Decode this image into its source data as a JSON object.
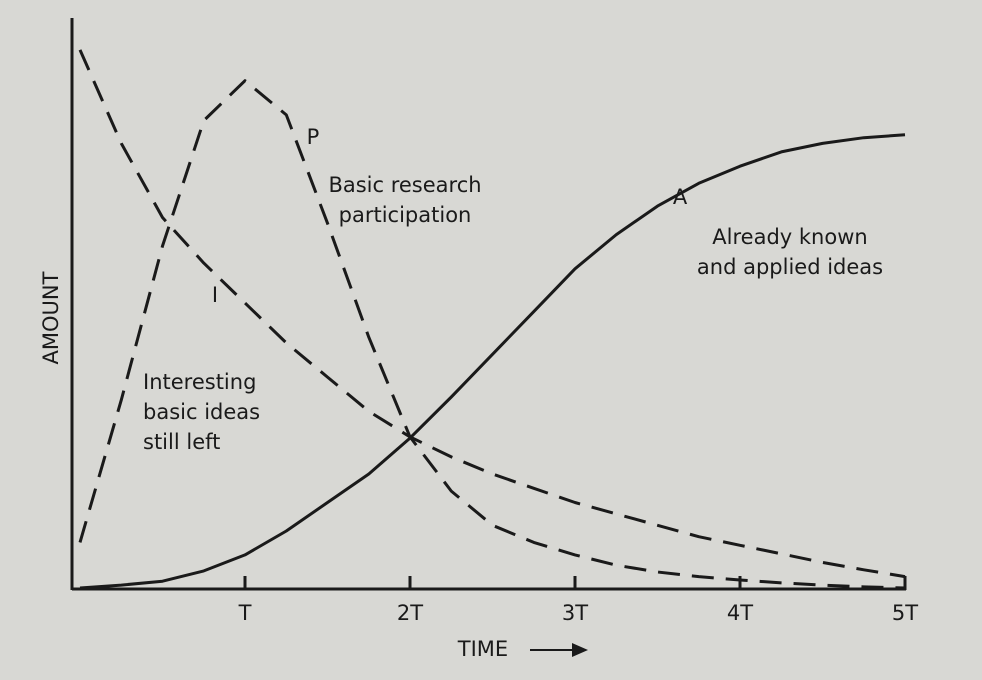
{
  "chart_data": {
    "type": "line",
    "x_label": "TIME",
    "y_label": "AMOUNT",
    "x": [
      0,
      0.25,
      0.5,
      0.75,
      1,
      1.25,
      1.5,
      1.75,
      2,
      2.25,
      2.5,
      2.75,
      3,
      3.25,
      3.5,
      3.75,
      4,
      4.25,
      4.5,
      4.75,
      5
    ],
    "xlim": [
      0,
      5
    ],
    "ylim": [
      0,
      1
    ],
    "xticks": [
      {
        "value": 1,
        "label": "T"
      },
      {
        "value": 2,
        "label": "2T"
      },
      {
        "value": 3,
        "label": "3T"
      },
      {
        "value": 4,
        "label": "4T"
      },
      {
        "value": 5,
        "label": "5T"
      }
    ],
    "series": [
      {
        "name": "P",
        "color": "#1a1a1a",
        "dash": true,
        "description": [
          "Basic research",
          "participation"
        ],
        "values": [
          0.08,
          0.33,
          0.6,
          0.82,
          0.89,
          0.83,
          0.64,
          0.44,
          0.265,
          0.17,
          0.11,
          0.08,
          0.058,
          0.04,
          0.028,
          0.02,
          0.014,
          0.009,
          0.005,
          0.002,
          0
        ]
      },
      {
        "name": "I",
        "color": "#1a1a1a",
        "dash": true,
        "description": [
          "Interesting",
          "basic ideas",
          "still left"
        ],
        "values": [
          0.944,
          0.78,
          0.65,
          0.57,
          0.5,
          0.43,
          0.37,
          0.31,
          0.265,
          0.23,
          0.2,
          0.175,
          0.15,
          0.13,
          0.11,
          0.09,
          0.075,
          0.06,
          0.045,
          0.032,
          0.02
        ]
      },
      {
        "name": "A",
        "color": "#1a1a1a",
        "dash": false,
        "description": [
          "Already known",
          "and applied ideas"
        ],
        "values": [
          0,
          0.005,
          0.012,
          0.03,
          0.058,
          0.1,
          0.15,
          0.2,
          0.263,
          0.335,
          0.41,
          0.485,
          0.56,
          0.62,
          0.67,
          0.71,
          0.74,
          0.765,
          0.78,
          0.79,
          0.795
        ]
      }
    ]
  }
}
